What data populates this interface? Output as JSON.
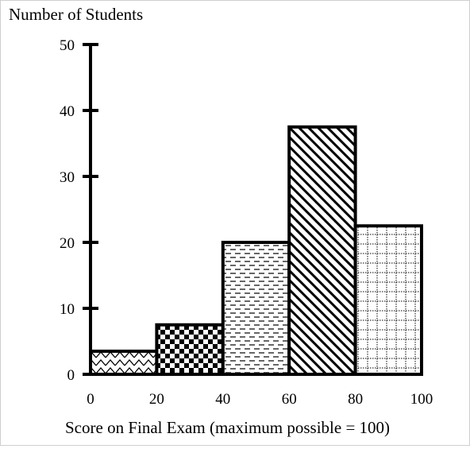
{
  "chart_data": {
    "type": "bar",
    "title": "",
    "ylabel": "Number of Students",
    "xlabel": "Score on Final Exam (maximum possible = 100)",
    "bins": [
      {
        "start": 0,
        "end": 20,
        "value": 3.5,
        "pattern": "zigzag"
      },
      {
        "start": 20,
        "end": 40,
        "value": 7.5,
        "pattern": "checkerboard"
      },
      {
        "start": 40,
        "end": 60,
        "value": 20,
        "pattern": "horizontal-dashes"
      },
      {
        "start": 60,
        "end": 80,
        "value": 37.5,
        "pattern": "diagonal-stripes"
      },
      {
        "start": 80,
        "end": 100,
        "value": 22.5,
        "pattern": "dotted-grid"
      }
    ],
    "x_ticks": [
      0,
      20,
      40,
      60,
      80,
      100
    ],
    "y_ticks": [
      0,
      10,
      20,
      30,
      40,
      50
    ],
    "xlim": [
      0,
      100
    ],
    "ylim": [
      0,
      50
    ],
    "grid": false,
    "bar_color": "#000000"
  }
}
